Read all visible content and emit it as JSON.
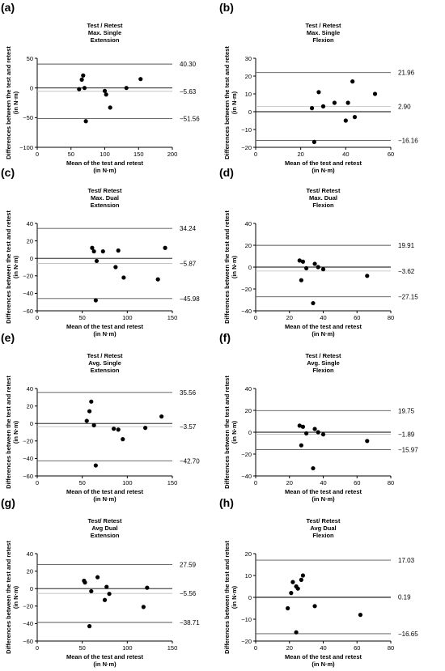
{
  "chart_data": [
    {
      "panel": "(a)",
      "type": "scatter",
      "title": [
        "Test / Retest",
        "Max. Single",
        "Extension"
      ],
      "xlabel": [
        "Mean of the test and retest",
        "(in N·m)"
      ],
      "ylabel": [
        "Differences between the test and retest",
        "(in N·m)"
      ],
      "xlim": [
        0,
        200
      ],
      "ylim": [
        -100,
        50
      ],
      "xticks": [
        0,
        50,
        100,
        150,
        200
      ],
      "yticks": [
        -100,
        -50,
        0,
        50
      ],
      "grid": false,
      "lines": [
        {
          "y": 40.3,
          "label": "40.30",
          "style": "limit"
        },
        {
          "y": -5.63,
          "label": "−5.63",
          "style": "mean"
        },
        {
          "y": -51.56,
          "label": "−51.56",
          "style": "limit"
        }
      ],
      "x": [
        62,
        66,
        68,
        70,
        72,
        100,
        102,
        108,
        132,
        153
      ],
      "y": [
        -2,
        14,
        21,
        0,
        -56,
        -5,
        -11,
        -33,
        0,
        15
      ]
    },
    {
      "panel": "(b)",
      "type": "scatter",
      "title": [
        "Test / Retest",
        "Max. Single",
        "Flexion"
      ],
      "xlabel": [
        "Mean of the test and retest",
        "(in N·m)"
      ],
      "ylabel": [
        "Differences between the test and retest",
        "(in N·m)"
      ],
      "xlim": [
        0,
        60
      ],
      "ylim": [
        -20,
        30
      ],
      "xticks": [
        0,
        20,
        40,
        60
      ],
      "yticks": [
        -20,
        -10,
        0,
        10,
        20,
        30
      ],
      "grid": false,
      "lines": [
        {
          "y": 21.96,
          "label": "21.96",
          "style": "limit"
        },
        {
          "y": 2.9,
          "label": "2.90",
          "style": "mean"
        },
        {
          "y": -16.16,
          "label": "−16.16",
          "style": "limit"
        }
      ],
      "x": [
        25,
        26,
        28,
        30,
        35,
        40,
        41,
        43,
        44,
        53
      ],
      "y": [
        2,
        -17,
        11,
        3,
        5,
        -5,
        5,
        17,
        -3,
        10
      ]
    },
    {
      "panel": "(c)",
      "type": "scatter",
      "title": [
        "Test/ Retest",
        "Max. Dual",
        "Extension"
      ],
      "xlabel": [
        "Mean of the test and retest",
        "(in N·m)"
      ],
      "ylabel": [
        "Differences between the test and retest",
        "(in N·m)"
      ],
      "xlim": [
        0,
        150
      ],
      "ylim": [
        -60,
        40
      ],
      "xticks": [
        0,
        50,
        100,
        150
      ],
      "yticks": [
        -60,
        -40,
        -20,
        0,
        20,
        40
      ],
      "grid": false,
      "lines": [
        {
          "y": 34.24,
          "label": "34.24",
          "style": "limit"
        },
        {
          "y": -5.87,
          "label": "−5.87",
          "style": "mean"
        },
        {
          "y": -45.98,
          "label": "−45.98",
          "style": "limit"
        }
      ],
      "x": [
        61,
        63,
        65,
        66,
        73,
        87,
        90,
        96,
        134,
        142
      ],
      "y": [
        12,
        8,
        -48,
        -3,
        8,
        -10,
        9,
        -22,
        -24,
        12
      ]
    },
    {
      "panel": "(d)",
      "type": "scatter",
      "title": [
        "Test/ Retest",
        "Max. Dual",
        "Flexion"
      ],
      "xlabel": [
        "Mean of the test and retest",
        "(in N·m)"
      ],
      "ylabel": [
        "Differences between the test and retest",
        "(in N·m)"
      ],
      "xlim": [
        0,
        80
      ],
      "ylim": [
        -40,
        40
      ],
      "xticks": [
        0,
        20,
        40,
        60,
        80
      ],
      "yticks": [
        -40,
        -20,
        0,
        20,
        40
      ],
      "grid": false,
      "lines": [
        {
          "y": 19.91,
          "label": "19.91",
          "style": "limit"
        },
        {
          "y": -3.62,
          "label": "−3.62",
          "style": "mean"
        },
        {
          "y": -27.15,
          "label": "−27.15",
          "style": "limit"
        }
      ],
      "x": [
        26,
        27,
        28,
        30,
        34,
        35,
        37,
        40,
        66
      ],
      "y": [
        6,
        -12,
        5,
        -1,
        -33,
        3,
        0,
        -2,
        -8
      ]
    },
    {
      "panel": "(e)",
      "type": "scatter",
      "title": [
        "Test / Retest",
        "Avg. Single",
        "Extension"
      ],
      "xlabel": [
        "Mean of the test and retest",
        "(in N·m)"
      ],
      "ylabel": [
        "Differences between the test and retest",
        "(in N·m)"
      ],
      "xlim": [
        0,
        150
      ],
      "ylim": [
        -60,
        40
      ],
      "xticks": [
        0,
        50,
        100,
        150
      ],
      "yticks": [
        -60,
        -40,
        -20,
        0,
        20,
        40
      ],
      "grid": false,
      "lines": [
        {
          "y": 35.56,
          "label": "35.56",
          "style": "limit"
        },
        {
          "y": -3.57,
          "label": "−3.57",
          "style": "mean"
        },
        {
          "y": -42.7,
          "label": "−42.70",
          "style": "limit"
        }
      ],
      "x": [
        55,
        58,
        60,
        63,
        65,
        85,
        90,
        95,
        120,
        138
      ],
      "y": [
        3,
        14,
        25,
        -2,
        -48,
        -6,
        -7,
        -18,
        -5,
        8
      ]
    },
    {
      "panel": "(f)",
      "type": "scatter",
      "title": [
        "Test / Retest",
        "Avg. Single",
        "Flexion"
      ],
      "xlabel": [
        "Mean of the test and retest",
        "(in N·m)"
      ],
      "ylabel": [
        "Differences between the test and retest",
        "(in N·m)"
      ],
      "xlim": [
        0,
        80
      ],
      "ylim": [
        -40,
        40
      ],
      "xticks": [
        0,
        20,
        40,
        60,
        80
      ],
      "yticks": [
        -40,
        -20,
        0,
        20,
        40
      ],
      "grid": false,
      "lines": [
        {
          "y": 19.75,
          "label": "19.75",
          "style": "limit"
        },
        {
          "y": -1.89,
          "label": "−1.89",
          "style": "mean"
        },
        {
          "y": -15.97,
          "label": "−15.97",
          "style": "limit"
        }
      ],
      "x": [
        26,
        27,
        28,
        30,
        34,
        35,
        37,
        40,
        66
      ],
      "y": [
        6,
        -12,
        5,
        -1,
        -33,
        3,
        0,
        -2,
        -8
      ]
    },
    {
      "panel": "(g)",
      "type": "scatter",
      "title": [
        "Test/ Retest",
        "Avg Dual",
        "Extension"
      ],
      "xlabel": [
        "Mean of the test and retest",
        "(in N·m)"
      ],
      "ylabel": [
        "Differences between the test and retest",
        "(in N·m)"
      ],
      "xlim": [
        0,
        150
      ],
      "ylim": [
        -60,
        40
      ],
      "xticks": [
        0,
        50,
        100,
        150
      ],
      "yticks": [
        -60,
        -40,
        -20,
        0,
        20,
        40
      ],
      "grid": false,
      "lines": [
        {
          "y": 27.59,
          "label": "27.59",
          "style": "limit"
        },
        {
          "y": -5.56,
          "label": "−5.56",
          "style": "mean"
        },
        {
          "y": -38.71,
          "label": "−38.71",
          "style": "limit"
        }
      ],
      "x": [
        52,
        53,
        58,
        60,
        67,
        75,
        77,
        80,
        118,
        122
      ],
      "y": [
        9,
        7,
        -43,
        -3,
        13,
        -13,
        2,
        -6,
        -21,
        1
      ]
    },
    {
      "panel": "(h)",
      "type": "scatter",
      "title": [
        "Test/ Retest",
        "Avg Dual",
        "Flexion"
      ],
      "xlabel": [
        "Mean of the test and retest",
        "(in N·m)"
      ],
      "ylabel": [
        "Differences between the test and retest",
        "(in N·m)"
      ],
      "xlim": [
        0,
        80
      ],
      "ylim": [
        -20,
        20
      ],
      "xticks": [
        0,
        20,
        40,
        60,
        80
      ],
      "yticks": [
        -20,
        -10,
        0,
        10,
        20
      ],
      "grid": false,
      "lines": [
        {
          "y": 17.03,
          "label": "17.03",
          "style": "limit"
        },
        {
          "y": 0.19,
          "label": "0.19",
          "style": "mean"
        },
        {
          "y": -16.65,
          "label": "−16.65",
          "style": "limit"
        }
      ],
      "x": [
        19,
        21,
        22,
        24,
        24,
        25,
        27,
        28,
        35,
        62
      ],
      "y": [
        -5,
        2,
        7,
        5,
        -16,
        4,
        8,
        10,
        -4,
        -8
      ]
    }
  ]
}
